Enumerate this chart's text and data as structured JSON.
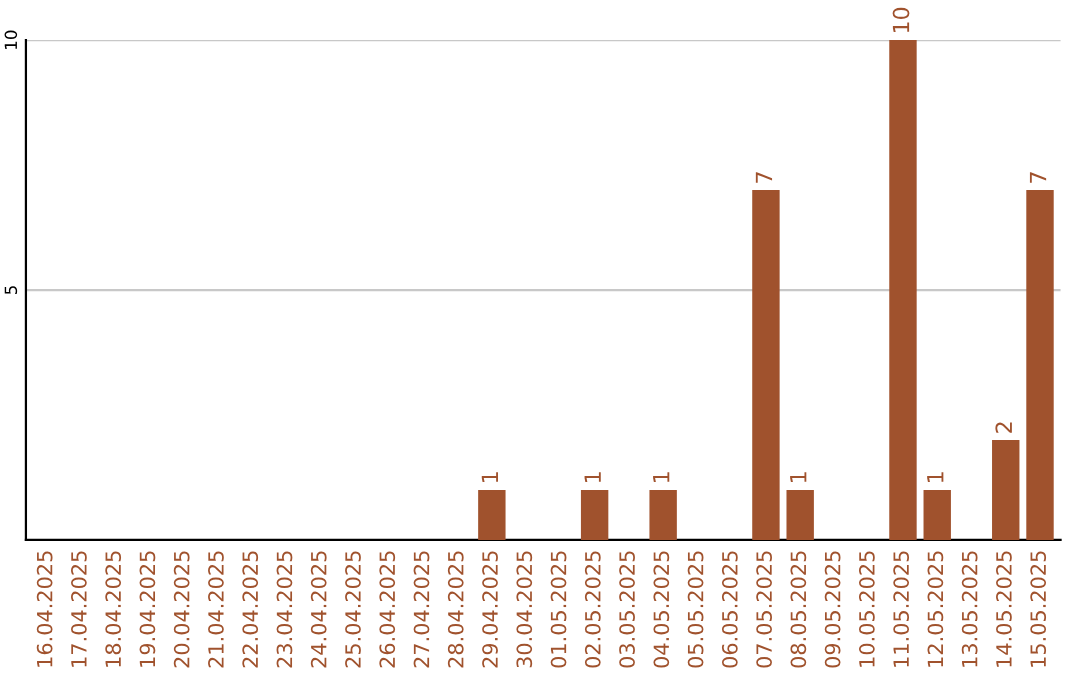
{
  "chart_data": {
    "type": "bar",
    "categories": [
      "16.04.2025",
      "17.04.2025",
      "18.04.2025",
      "19.04.2025",
      "20.04.2025",
      "21.04.2025",
      "22.04.2025",
      "23.04.2025",
      "24.04.2025",
      "25.04.2025",
      "26.04.2025",
      "27.04.2025",
      "28.04.2025",
      "29.04.2025",
      "30.04.2025",
      "01.05.2025",
      "02.05.2025",
      "03.05.2025",
      "04.05.2025",
      "05.05.2025",
      "06.05.2025",
      "07.05.2025",
      "08.05.2025",
      "09.05.2025",
      "10.05.2025",
      "11.05.2025",
      "12.05.2025",
      "13.05.2025",
      "14.05.2025",
      "15.05.2025"
    ],
    "values": [
      0,
      0,
      0,
      0,
      0,
      0,
      0,
      0,
      0,
      0,
      0,
      0,
      0,
      1,
      0,
      0,
      1,
      0,
      1,
      0,
      0,
      7,
      1,
      0,
      0,
      10,
      1,
      0,
      2,
      7
    ],
    "color": "#a0522d",
    "value_labels": [
      null,
      null,
      null,
      null,
      null,
      null,
      null,
      null,
      null,
      null,
      null,
      null,
      null,
      "1",
      null,
      null,
      "1",
      null,
      "1",
      null,
      null,
      "7",
      "1",
      null,
      null,
      "10",
      "1",
      null,
      "2",
      "7"
    ],
    "ylim": [
      0,
      10
    ],
    "yticks": [
      5,
      10
    ],
    "grid": "y"
  }
}
